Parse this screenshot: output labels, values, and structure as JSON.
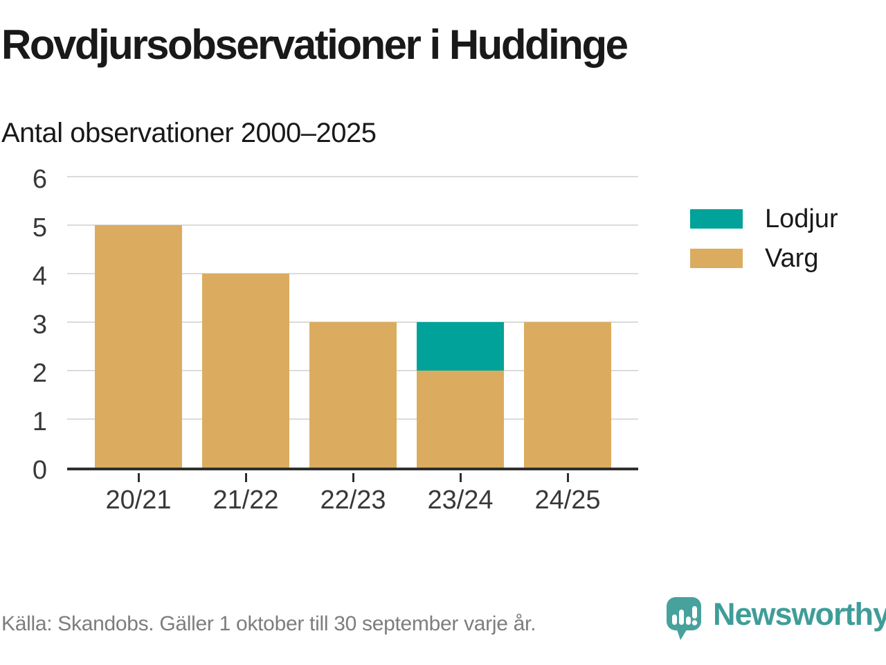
{
  "chart_data": {
    "type": "bar",
    "stacked": true,
    "title": "Rovdjursobservationer i Huddinge",
    "subtitle": "Antal observationer 2000–2025",
    "categories": [
      "20/21",
      "21/22",
      "22/23",
      "23/24",
      "24/25"
    ],
    "series": [
      {
        "name": "Varg",
        "color": "#dbac5f",
        "values": [
          5,
          4,
          3,
          2,
          3
        ]
      },
      {
        "name": "Lodjur",
        "color": "#00a29a",
        "values": [
          0,
          0,
          0,
          1,
          0
        ]
      }
    ],
    "totals": [
      5,
      4,
      3,
      3,
      3
    ],
    "ylim": [
      0,
      6
    ],
    "yticks": [
      0,
      1,
      2,
      3,
      4,
      5,
      6
    ],
    "grid": "horizontal",
    "legend_position": "right"
  },
  "legend": {
    "items": [
      {
        "label": "Lodjur",
        "color": "#00a29a"
      },
      {
        "label": "Varg",
        "color": "#dbac5f"
      }
    ]
  },
  "footer": {
    "source_note": "Källa: Skandobs. Gäller 1 oktober till 30 september varje år.",
    "brand_name": "Newsworthy"
  },
  "icons": {
    "brand_mark": "newsworthy-speech-bubble-bar-chart-icon"
  },
  "colors": {
    "lodjur": "#00a29a",
    "varg": "#dbac5f",
    "brand_teal": "#47a29d",
    "brand_text_teal": "#3f9d99",
    "gridline": "#dbdbdb",
    "axis": "#2e2e2e",
    "text": "#191919",
    "muted_text": "#7d7d7d"
  }
}
